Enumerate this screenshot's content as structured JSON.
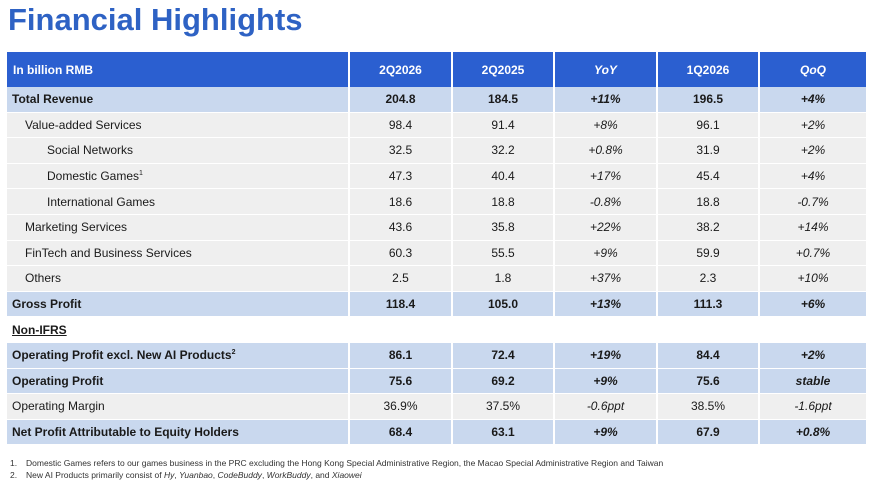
{
  "title": "Financial Highlights",
  "table": {
    "headers": [
      "In billion RMB",
      "2Q2026",
      "2Q2025",
      "YoY",
      "1Q2026",
      "QoQ"
    ],
    "rows": [
      {
        "label": "Total Revenue",
        "v1": "204.8",
        "v2": "184.5",
        "yoy": "+11%",
        "v4": "196.5",
        "qoq": "+4%"
      },
      {
        "label": "Value-added Services",
        "v1": "98.4",
        "v2": "91.4",
        "yoy": "+8%",
        "v4": "96.1",
        "qoq": "+2%"
      },
      {
        "label": "Social Networks",
        "v1": "32.5",
        "v2": "32.2",
        "yoy": "+0.8%",
        "v4": "31.9",
        "qoq": "+2%"
      },
      {
        "label": "Domestic Games",
        "sup": "1",
        "v1": "47.3",
        "v2": "40.4",
        "yoy": "+17%",
        "v4": "45.4",
        "qoq": "+4%"
      },
      {
        "label": "International Games",
        "v1": "18.6",
        "v2": "18.8",
        "yoy": "-0.8%",
        "v4": "18.8",
        "qoq": "-0.7%"
      },
      {
        "label": "Marketing Services",
        "v1": "43.6",
        "v2": "35.8",
        "yoy": "+22%",
        "v4": "38.2",
        "qoq": "+14%"
      },
      {
        "label": "FinTech and Business Services",
        "v1": "60.3",
        "v2": "55.5",
        "yoy": "+9%",
        "v4": "59.9",
        "qoq": "+0.7%"
      },
      {
        "label": "Others",
        "v1": "2.5",
        "v2": "1.8",
        "yoy": "+37%",
        "v4": "2.3",
        "qoq": "+10%"
      },
      {
        "label": "Gross Profit",
        "v1": "118.4",
        "v2": "105.0",
        "yoy": "+13%",
        "v4": "111.3",
        "qoq": "+6%"
      },
      {
        "label": "Non-IFRS"
      },
      {
        "label": "Operating Profit excl. New AI Products",
        "sup": "2",
        "v1": "86.1",
        "v2": "72.4",
        "yoy": "+19%",
        "v4": "84.4",
        "qoq": "+2%"
      },
      {
        "label": "Operating Profit",
        "v1": "75.6",
        "v2": "69.2",
        "yoy": "+9%",
        "v4": "75.6",
        "qoq": "stable"
      },
      {
        "label": "Operating Margin",
        "v1": "36.9%",
        "v2": "37.5%",
        "yoy": "-0.6ppt",
        "v4": "38.5%",
        "qoq": "-1.6ppt"
      },
      {
        "label": "Net Profit Attributable to Equity Holders",
        "v1": "68.4",
        "v2": "63.1",
        "yoy": "+9%",
        "v4": "67.9",
        "qoq": "+0.8%"
      }
    ]
  },
  "footnotes": [
    {
      "num": "1.",
      "text": "Domestic Games refers to our games business in the PRC excluding the Hong Kong Special Administrative Region, the Macao Special Administrative Region and Taiwan"
    },
    {
      "num": "2.",
      "prefix": "New AI Products primarily consist of ",
      "p1": "Hy",
      "s1": ", ",
      "p2": "Yuanbao",
      "s2": ", ",
      "p3": "CodeBuddy",
      "s3": ", ",
      "p4": "WorkBuddy",
      "s4": ", and ",
      "p5": "Xiaowei"
    }
  ],
  "colors": {
    "title": "#2e62c4",
    "header_bg": "#2b5fd0",
    "highlight_row": "#c9d8ee",
    "plain_row": "#efefef"
  }
}
